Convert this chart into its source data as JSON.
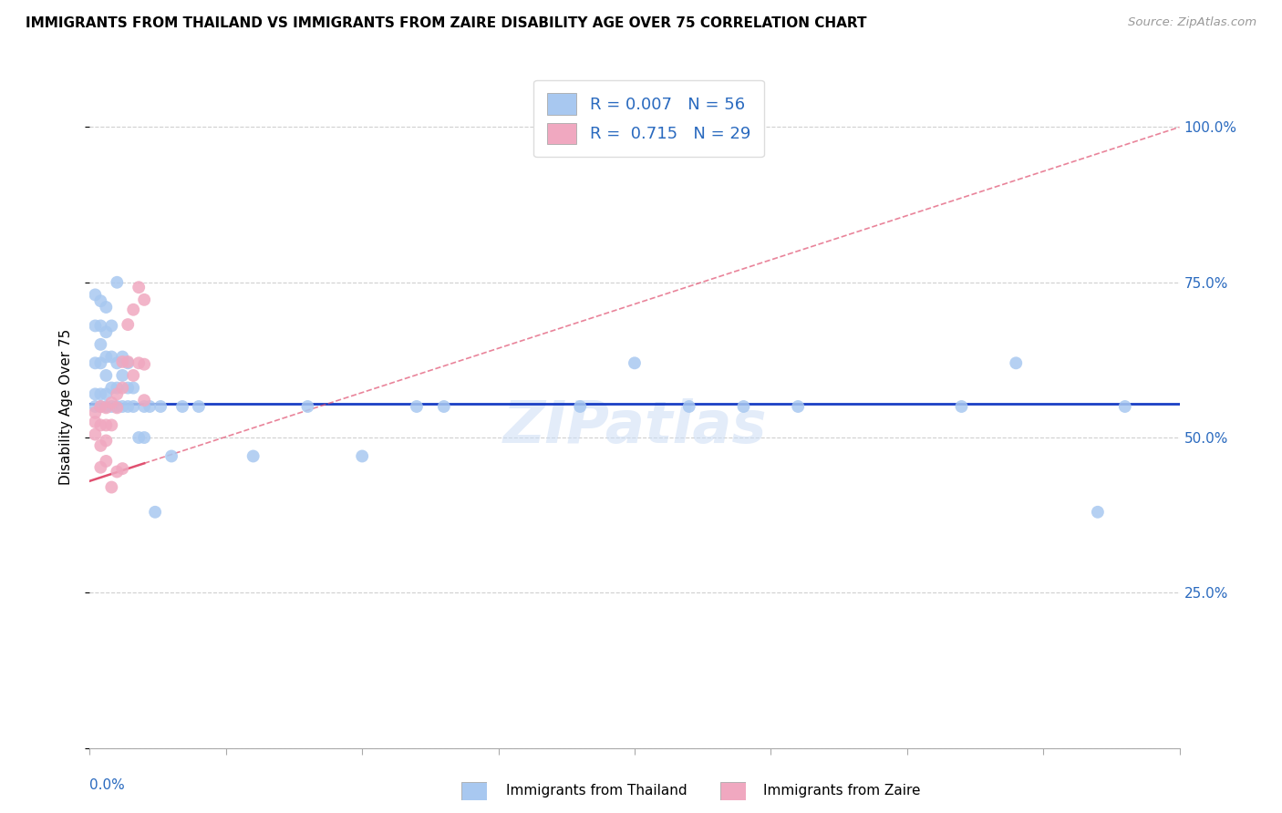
{
  "title": "IMMIGRANTS FROM THAILAND VS IMMIGRANTS FROM ZAIRE DISABILITY AGE OVER 75 CORRELATION CHART",
  "source": "Source: ZipAtlas.com",
  "ylabel": "Disability Age Over 75",
  "color_thailand": "#a8c8f0",
  "color_zaire": "#f0a8c0",
  "color_trendline_thailand": "#1a3fc4",
  "color_trendline_zaire": "#e05070",
  "color_text_blue": "#2a6abf",
  "watermark": "ZIPatlas",
  "r_thailand": "0.007",
  "n_thailand": "56",
  "r_zaire": "0.715",
  "n_zaire": "29",
  "legend_label_thailand": "Immigrants from Thailand",
  "legend_label_zaire": "Immigrants from Zaire",
  "thailand_x": [
    0.001,
    0.001,
    0.001,
    0.001,
    0.001,
    0.002,
    0.002,
    0.002,
    0.002,
    0.002,
    0.002,
    0.003,
    0.003,
    0.003,
    0.003,
    0.003,
    0.003,
    0.004,
    0.004,
    0.004,
    0.004,
    0.005,
    0.005,
    0.005,
    0.005,
    0.006,
    0.006,
    0.006,
    0.007,
    0.007,
    0.007,
    0.008,
    0.008,
    0.009,
    0.01,
    0.01,
    0.011,
    0.012,
    0.013,
    0.015,
    0.017,
    0.02,
    0.03,
    0.04,
    0.05,
    0.06,
    0.065,
    0.09,
    0.1,
    0.11,
    0.12,
    0.13,
    0.16,
    0.17,
    0.185,
    0.19
  ],
  "thailand_y": [
    0.55,
    0.57,
    0.62,
    0.68,
    0.73,
    0.55,
    0.57,
    0.62,
    0.65,
    0.68,
    0.72,
    0.55,
    0.57,
    0.6,
    0.63,
    0.67,
    0.71,
    0.55,
    0.58,
    0.63,
    0.68,
    0.55,
    0.58,
    0.62,
    0.75,
    0.55,
    0.6,
    0.63,
    0.55,
    0.58,
    0.62,
    0.55,
    0.58,
    0.5,
    0.5,
    0.55,
    0.55,
    0.38,
    0.55,
    0.47,
    0.55,
    0.55,
    0.47,
    0.55,
    0.47,
    0.55,
    0.55,
    0.55,
    0.62,
    0.55,
    0.55,
    0.55,
    0.55,
    0.62,
    0.38,
    0.55
  ],
  "zaire_x": [
    0.001,
    0.001,
    0.001,
    0.002,
    0.002,
    0.002,
    0.002,
    0.003,
    0.003,
    0.003,
    0.003,
    0.004,
    0.004,
    0.004,
    0.005,
    0.005,
    0.005,
    0.006,
    0.006,
    0.006,
    0.007,
    0.007,
    0.008,
    0.008,
    0.009,
    0.009,
    0.01,
    0.01,
    0.01
  ],
  "zaire_y": [
    0.54,
    0.525,
    0.505,
    0.55,
    0.52,
    0.487,
    0.452,
    0.548,
    0.52,
    0.495,
    0.462,
    0.556,
    0.52,
    0.42,
    0.57,
    0.548,
    0.445,
    0.622,
    0.58,
    0.45,
    0.682,
    0.622,
    0.706,
    0.6,
    0.742,
    0.62,
    0.722,
    0.56,
    0.618
  ],
  "xlim": [
    0.0,
    0.2
  ],
  "ylim": [
    0.0,
    1.1
  ],
  "yticks": [
    0.0,
    0.25,
    0.5,
    0.75,
    1.0
  ],
  "yticklabels": [
    "",
    "25.0%",
    "50.0%",
    "75.0%",
    "100.0%"
  ],
  "zaire_trend_x0": 0.0,
  "zaire_trend_y0": 0.43,
  "zaire_trend_x1": 0.2,
  "zaire_trend_y1": 1.0,
  "thailand_trend_y": 0.555,
  "figsize": [
    14.06,
    8.92
  ],
  "dpi": 100
}
